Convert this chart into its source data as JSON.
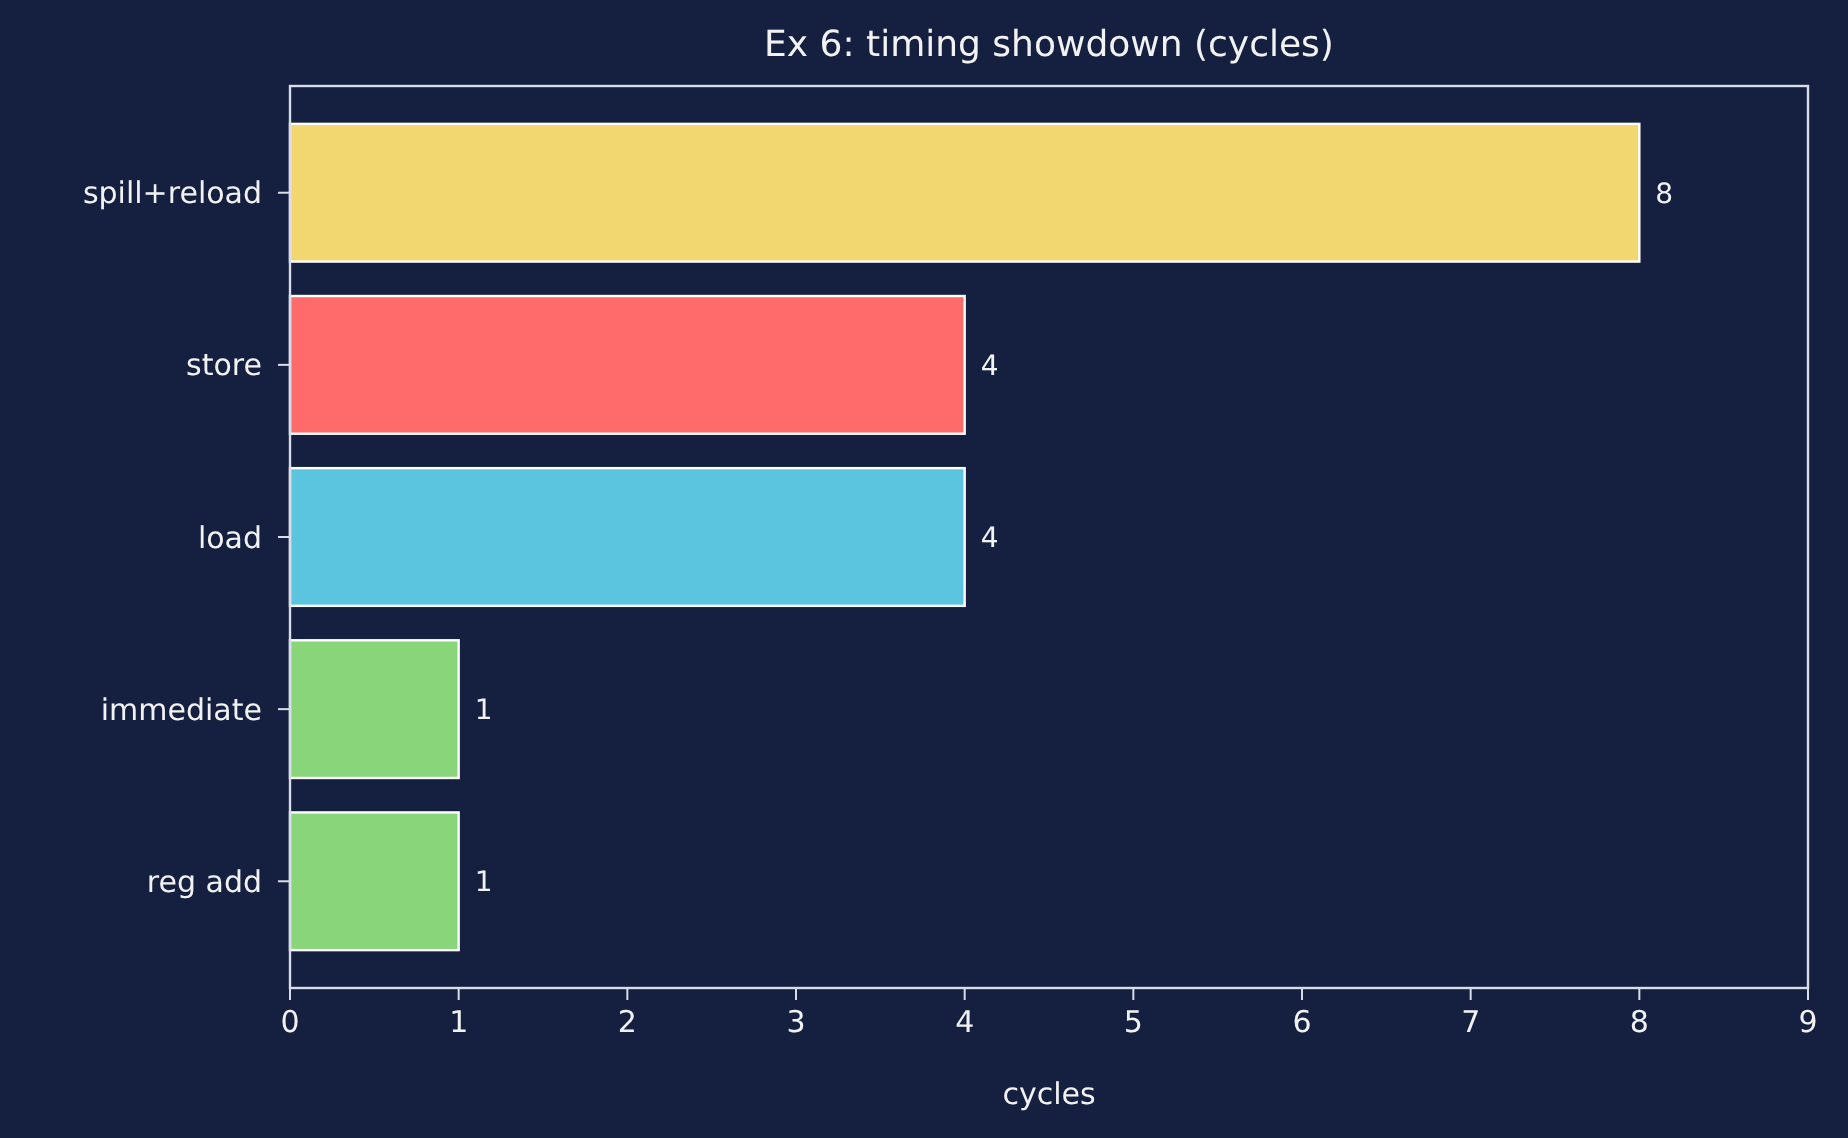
{
  "chart_data": {
    "type": "bar",
    "orientation": "horizontal",
    "title": "Ex 6: timing showdown (cycles)",
    "xlabel": "cycles",
    "categories": [
      "spill+reload",
      "store",
      "load",
      "immediate",
      "reg add"
    ],
    "values": [
      8,
      4,
      4,
      1,
      1
    ],
    "colors": [
      "#f2d670",
      "#ff6b6b",
      "#5bc4de",
      "#88d57a",
      "#88d57a"
    ],
    "xlim": [
      0,
      9
    ],
    "xticks": [
      0,
      1,
      2,
      3,
      4,
      5,
      6,
      7,
      8,
      9
    ],
    "data_labels": true
  }
}
